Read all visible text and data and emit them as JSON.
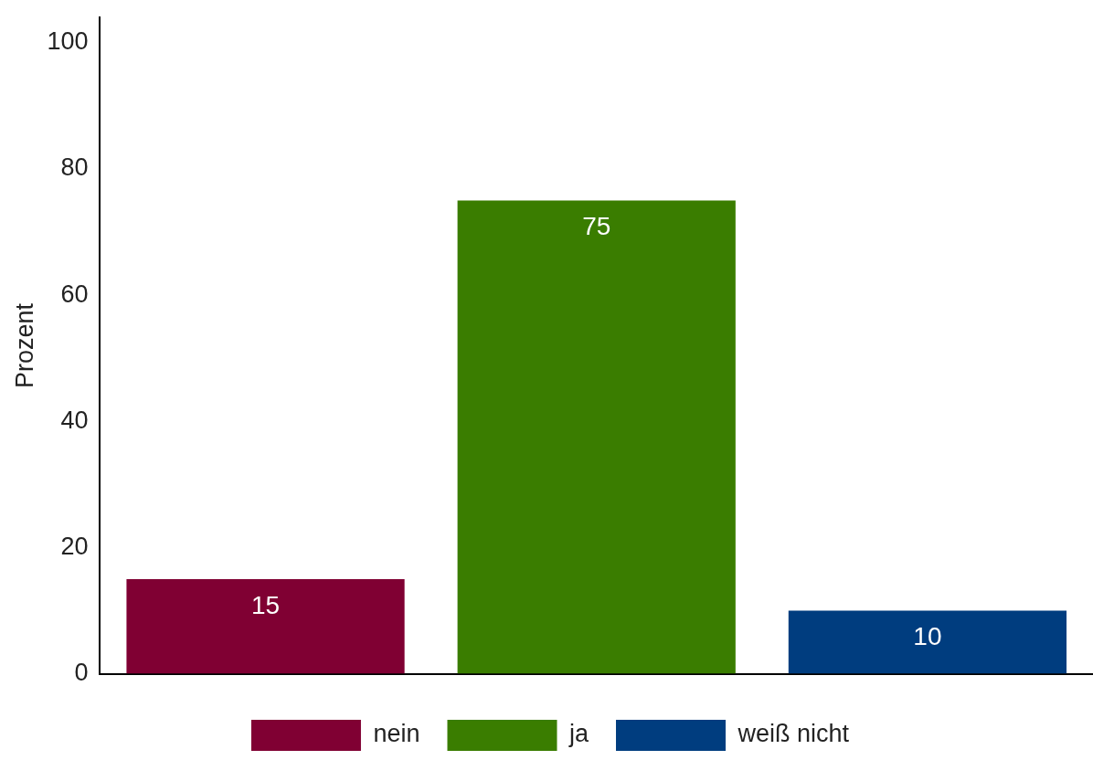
{
  "chart_data": {
    "type": "bar",
    "ylabel": "Prozent",
    "categories": [
      null,
      null,
      null
    ],
    "series": [
      {
        "name": "nein",
        "color": "#800033",
        "values": [
          15,
          null,
          null
        ]
      },
      {
        "name": "ja",
        "color": "#3a7d00",
        "values": [
          null,
          75,
          null
        ]
      },
      {
        "name": "weiß nicht",
        "color": "#003d7f",
        "values": [
          null,
          null,
          10
        ]
      }
    ],
    "ylim": [
      0,
      104
    ],
    "yticks": [
      0,
      20,
      40,
      60,
      80,
      100
    ],
    "grid": false,
    "legend": "bottom",
    "data_labels": true
  }
}
